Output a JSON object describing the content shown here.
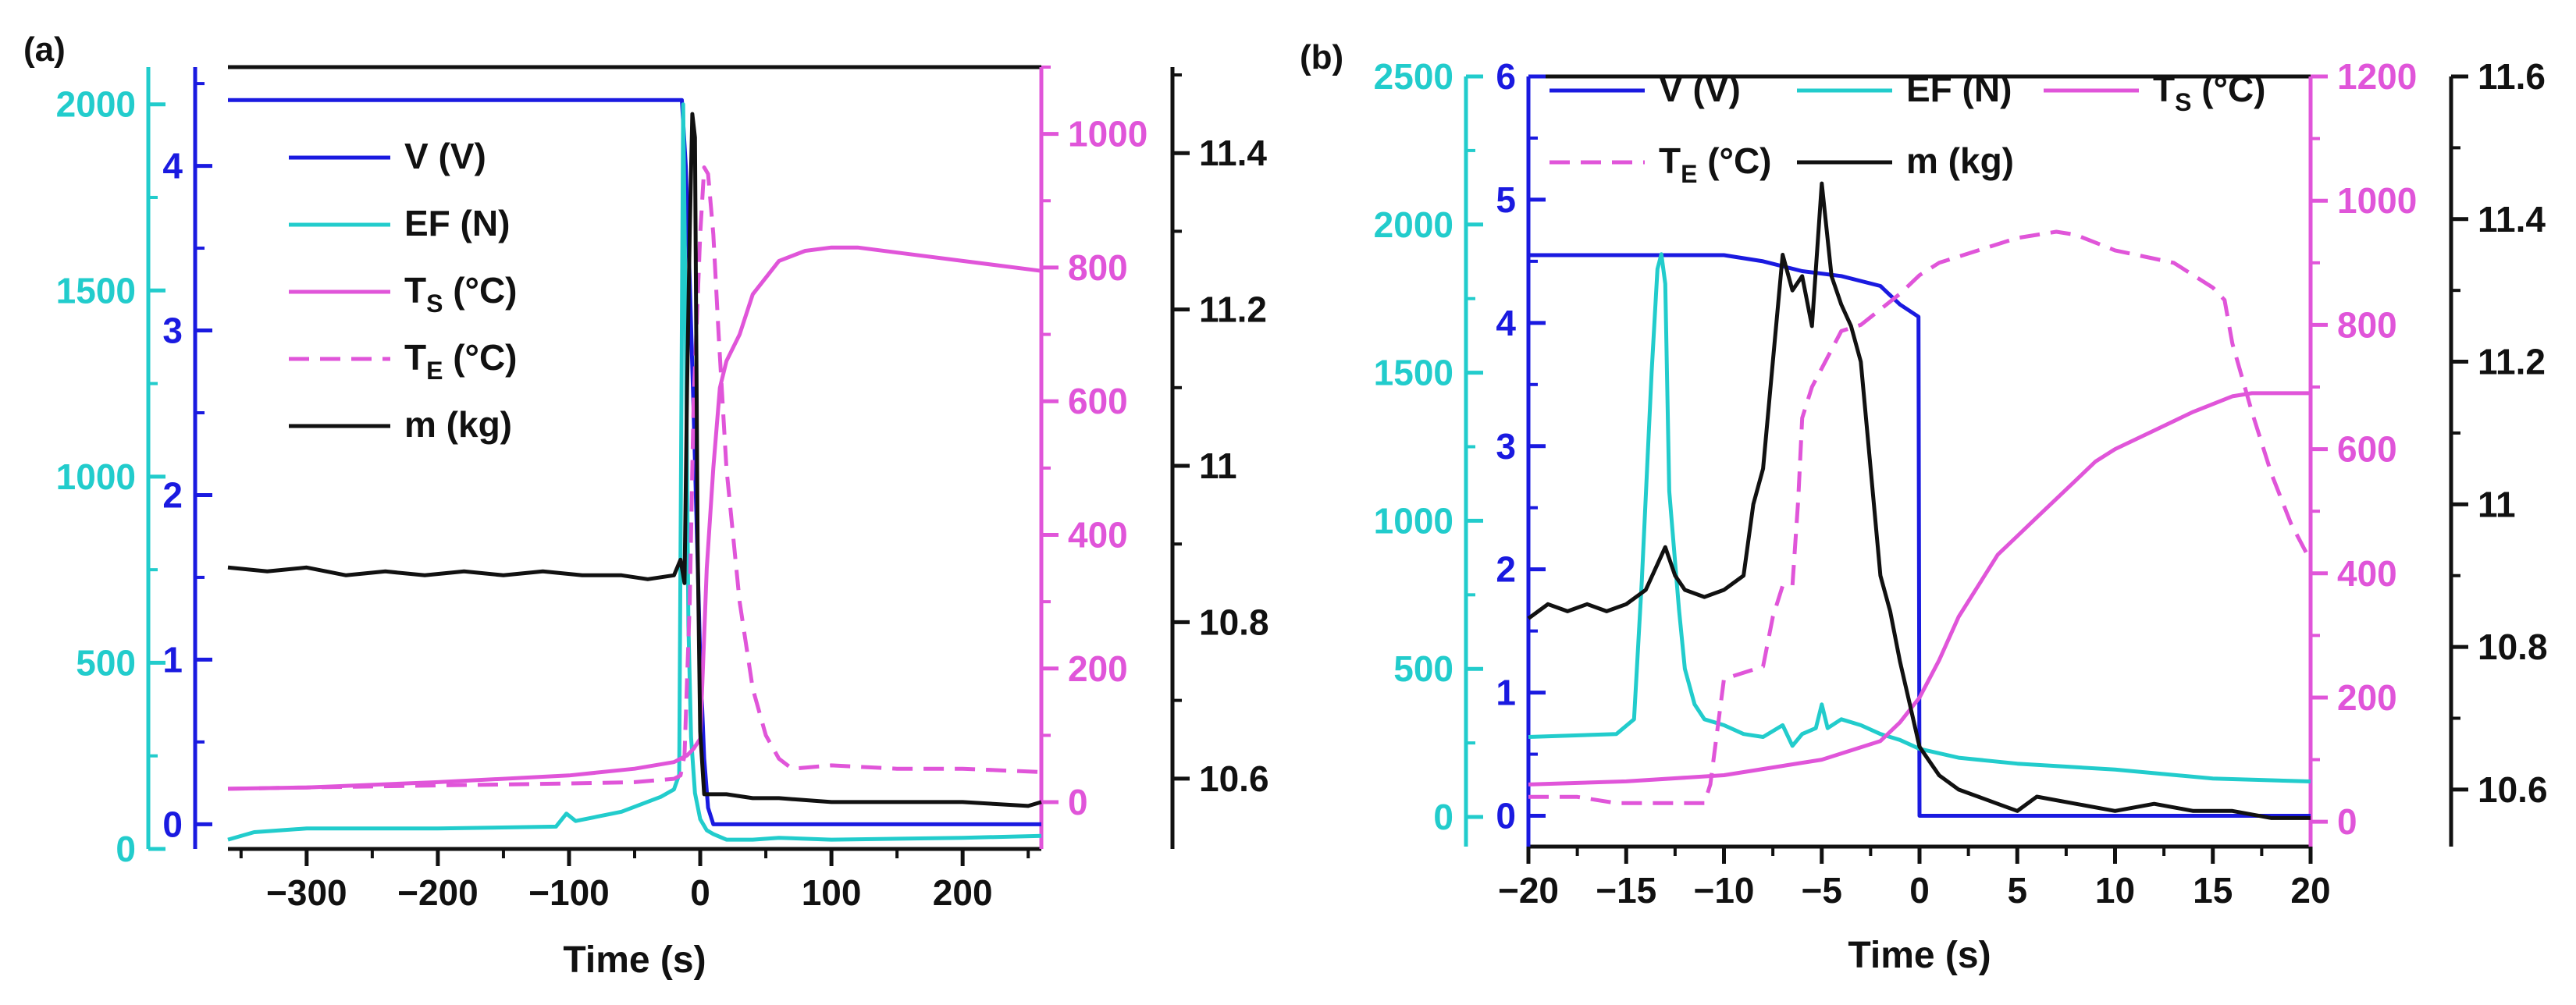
{
  "colors": {
    "V": "#1a1ae0",
    "EF": "#22cccc",
    "TS": "#e055d9",
    "TE": "#e055d9",
    "m": "#111111"
  },
  "chart_data": [
    {
      "panel": "(a)",
      "type": "line",
      "xlabel": "Time (s)",
      "xlim": [
        -360,
        260
      ],
      "xticks": [
        -300,
        -200,
        -100,
        0,
        100,
        200
      ],
      "axes": {
        "EF": {
          "lim": [
            0,
            2100
          ],
          "ticks": [
            0,
            500,
            1000,
            1500,
            2000
          ]
        },
        "V": {
          "lim": [
            -0.15,
            4.6
          ],
          "ticks": [
            0,
            1,
            2,
            3,
            4
          ]
        },
        "T": {
          "lim": [
            -70,
            1100
          ],
          "ticks": [
            0,
            200,
            400,
            600,
            800,
            1000
          ]
        },
        "m": {
          "lim": [
            10.51,
            11.51
          ],
          "ticks": [
            10.6,
            10.8,
            11.0,
            11.2,
            11.4
          ]
        }
      },
      "legend": {
        "position": "top-left",
        "entries": [
          {
            "key": "V",
            "main": "V (V)",
            "sub": "",
            "tail": ""
          },
          {
            "key": "EF",
            "main": "EF (N)",
            "sub": "",
            "tail": ""
          },
          {
            "key": "TS",
            "main": "T",
            "sub": "S",
            "tail": " (°C)"
          },
          {
            "key": "TE",
            "main": "T",
            "sub": "E",
            "tail": " (°C)"
          },
          {
            "key": "m",
            "main": "m (kg)",
            "sub": "",
            "tail": ""
          }
        ]
      },
      "series": [
        {
          "name": "V (V)",
          "axis": "V",
          "key": "V",
          "x": [
            -360,
            -20,
            -14,
            -11,
            -8,
            -5,
            -2,
            0,
            3,
            6,
            10,
            20,
            260
          ],
          "y": [
            4.4,
            4.4,
            4.4,
            4.0,
            3.3,
            2.5,
            1.6,
            1.0,
            0.4,
            0.1,
            0.0,
            0.0,
            0.0
          ]
        },
        {
          "name": "EF (N)",
          "axis": "EF",
          "key": "EF",
          "x": [
            -360,
            -340,
            -300,
            -200,
            -110,
            -102,
            -95,
            -60,
            -30,
            -20,
            -16,
            -13,
            -11,
            -9,
            -7,
            -4,
            0,
            5,
            10,
            20,
            40,
            60,
            100,
            200,
            260
          ],
          "y": [
            25,
            45,
            55,
            55,
            60,
            95,
            75,
            100,
            140,
            160,
            200,
            2000,
            1400,
            600,
            300,
            150,
            80,
            50,
            40,
            25,
            25,
            30,
            25,
            30,
            35
          ]
        },
        {
          "name": "T_S (°C)",
          "axis": "T",
          "key": "TS",
          "x": [
            -360,
            -300,
            -200,
            -100,
            -50,
            -20,
            -10,
            -5,
            0,
            5,
            10,
            15,
            20,
            30,
            40,
            60,
            80,
            100,
            120,
            160,
            200,
            260
          ],
          "y": [
            20,
            22,
            30,
            40,
            50,
            60,
            70,
            80,
            95,
            350,
            500,
            620,
            660,
            700,
            760,
            810,
            825,
            830,
            830,
            820,
            810,
            795
          ]
        },
        {
          "name": "T_E (°C)",
          "axis": "T",
          "key": "TE",
          "x": [
            -360,
            -300,
            -200,
            -100,
            -50,
            -20,
            -15,
            -12,
            -8,
            -5,
            0,
            3,
            6,
            10,
            14,
            20,
            30,
            40,
            50,
            60,
            70,
            100,
            150,
            200,
            260
          ],
          "y": [
            20,
            22,
            25,
            28,
            30,
            35,
            40,
            70,
            300,
            600,
            850,
            950,
            940,
            850,
            700,
            500,
            300,
            170,
            100,
            65,
            50,
            55,
            50,
            50,
            45
          ]
        },
        {
          "name": "m (kg)",
          "axis": "m",
          "key": "m",
          "x": [
            -360,
            -330,
            -300,
            -270,
            -240,
            -210,
            -180,
            -150,
            -120,
            -90,
            -60,
            -40,
            -20,
            -15,
            -12,
            -10,
            -8,
            -6,
            -4,
            -2,
            0,
            3,
            6,
            10,
            20,
            40,
            60,
            100,
            150,
            200,
            250,
            260
          ],
          "y": [
            10.87,
            10.865,
            10.87,
            10.86,
            10.865,
            10.86,
            10.865,
            10.86,
            10.865,
            10.86,
            10.86,
            10.855,
            10.86,
            10.88,
            10.85,
            11.1,
            11.3,
            11.45,
            11.42,
            10.9,
            10.66,
            10.58,
            10.58,
            10.58,
            10.58,
            10.575,
            10.575,
            10.57,
            10.57,
            10.57,
            10.565,
            10.57
          ]
        }
      ]
    },
    {
      "panel": "(b)",
      "type": "line",
      "xlabel": "Time (s)",
      "xlim": [
        -20,
        20
      ],
      "xticks": [
        -20,
        -15,
        -10,
        -5,
        0,
        5,
        10,
        15,
        20
      ],
      "axes": {
        "EF": {
          "lim": [
            -100,
            2500
          ],
          "ticks": [
            0,
            500,
            1000,
            1500,
            2000,
            2500
          ]
        },
        "V": {
          "lim": [
            -0.25,
            6
          ],
          "ticks": [
            0,
            1,
            2,
            3,
            4,
            5,
            6
          ]
        },
        "T": {
          "lim": [
            -40,
            1200
          ],
          "ticks": [
            0,
            200,
            400,
            600,
            800,
            1000,
            1200
          ]
        },
        "m": {
          "lim": [
            10.52,
            11.6
          ],
          "ticks": [
            10.6,
            10.8,
            11.0,
            11.2,
            11.4,
            11.6
          ]
        }
      },
      "legend": {
        "position": "top",
        "entries": [
          {
            "key": "V",
            "main": "V (V)",
            "sub": "",
            "tail": ""
          },
          {
            "key": "EF",
            "main": "EF (N)",
            "sub": "",
            "tail": ""
          },
          {
            "key": "TS",
            "main": "T",
            "sub": "S",
            "tail": " (°C)"
          },
          {
            "key": "TE",
            "main": "T",
            "sub": "E",
            "tail": " (°C)"
          },
          {
            "key": "m",
            "main": "m (kg)",
            "sub": "",
            "tail": ""
          }
        ]
      },
      "series": [
        {
          "name": "V (V)",
          "axis": "V",
          "key": "V",
          "x": [
            -20,
            -10,
            -8,
            -6,
            -4,
            -2,
            -1,
            -0.05,
            0,
            20
          ],
          "y": [
            4.55,
            4.55,
            4.5,
            4.42,
            4.38,
            4.3,
            4.15,
            4.05,
            0,
            0
          ]
        },
        {
          "name": "EF (N)",
          "axis": "EF",
          "key": "EF",
          "x": [
            -20,
            -15.5,
            -14.6,
            -14.2,
            -13.7,
            -13.4,
            -13.2,
            -13.0,
            -12.8,
            -12.3,
            -12,
            -11.5,
            -11,
            -10,
            -9,
            -8,
            -7,
            -6.5,
            -6,
            -5.3,
            -5,
            -4.7,
            -4,
            -3,
            -2,
            -1,
            0,
            2,
            5,
            10,
            15,
            20
          ],
          "y": [
            270,
            280,
            330,
            800,
            1500,
            1850,
            1900,
            1800,
            1100,
            700,
            500,
            380,
            330,
            310,
            280,
            270,
            310,
            240,
            280,
            300,
            380,
            300,
            330,
            310,
            280,
            260,
            230,
            200,
            180,
            160,
            130,
            120
          ]
        },
        {
          "name": "T_S (°C)",
          "axis": "T",
          "key": "TS",
          "x": [
            -20,
            -15,
            -10,
            -5,
            -2,
            -1,
            0,
            1,
            2,
            3,
            4,
            5,
            6,
            7,
            8,
            9,
            10,
            12,
            14,
            16,
            17,
            18,
            20
          ],
          "y": [
            60,
            65,
            75,
            100,
            130,
            160,
            200,
            260,
            330,
            380,
            430,
            460,
            490,
            520,
            550,
            580,
            600,
            630,
            660,
            685,
            690,
            690,
            690
          ]
        },
        {
          "name": "T_E (°C)",
          "axis": "T",
          "key": "TE",
          "x": [
            -20,
            -17.5,
            -15.5,
            -15,
            -11,
            -10.7,
            -10,
            -8,
            -7.5,
            -7,
            -6.5,
            -6.2,
            -6,
            -5.5,
            -5,
            -4.5,
            -4,
            -3,
            -1,
            0,
            1,
            3,
            5,
            7,
            8,
            10,
            13,
            15,
            15.6,
            16,
            17,
            18,
            19,
            20
          ],
          "y": [
            40,
            40,
            30,
            30,
            30,
            60,
            230,
            250,
            330,
            380,
            380,
            520,
            650,
            700,
            730,
            760,
            790,
            800,
            850,
            880,
            900,
            920,
            940,
            950,
            945,
            920,
            900,
            860,
            840,
            770,
            660,
            560,
            480,
            420
          ]
        },
        {
          "name": "m (kg)",
          "axis": "m",
          "key": "m",
          "x": [
            -20,
            -19,
            -18,
            -17,
            -16,
            -15,
            -14,
            -13.5,
            -13,
            -12.5,
            -12,
            -11,
            -10,
            -9,
            -8.5,
            -8,
            -7.5,
            -7,
            -6.5,
            -6,
            -5.5,
            -5,
            -4.5,
            -4,
            -3.5,
            -3,
            -2.5,
            -2,
            -1.5,
            -1,
            -0.5,
            0,
            0.5,
            1,
            2,
            3,
            4,
            5,
            6,
            8,
            10,
            12,
            14,
            16,
            18,
            20
          ],
          "y": [
            10.84,
            10.86,
            10.85,
            10.86,
            10.85,
            10.86,
            10.88,
            10.91,
            10.94,
            10.9,
            10.88,
            10.87,
            10.88,
            10.9,
            11.0,
            11.05,
            11.2,
            11.35,
            11.3,
            11.32,
            11.25,
            11.45,
            11.32,
            11.28,
            11.25,
            11.2,
            11.05,
            10.9,
            10.85,
            10.78,
            10.72,
            10.66,
            10.64,
            10.62,
            10.6,
            10.59,
            10.58,
            10.57,
            10.59,
            10.58,
            10.57,
            10.58,
            10.57,
            10.57,
            10.56,
            10.56
          ]
        }
      ]
    }
  ]
}
